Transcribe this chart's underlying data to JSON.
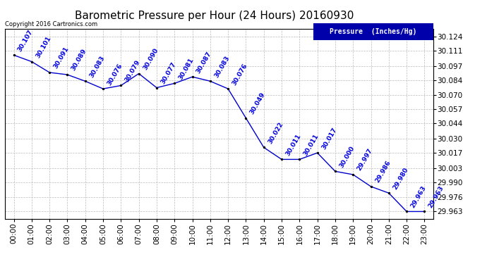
{
  "title": "Barometric Pressure per Hour (24 Hours) 20160930",
  "copyright": "Copyright 2016 Cartronics.com",
  "legend_label": "Pressure  (Inches/Hg)",
  "hours": [
    0,
    1,
    2,
    3,
    4,
    5,
    6,
    7,
    8,
    9,
    10,
    11,
    12,
    13,
    14,
    15,
    16,
    17,
    18,
    19,
    20,
    21,
    22,
    23
  ],
  "hour_labels": [
    "00:00",
    "01:00",
    "02:00",
    "03:00",
    "04:00",
    "05:00",
    "06:00",
    "07:00",
    "08:00",
    "09:00",
    "10:00",
    "11:00",
    "12:00",
    "13:00",
    "14:00",
    "15:00",
    "16:00",
    "17:00",
    "18:00",
    "19:00",
    "20:00",
    "21:00",
    "22:00",
    "23:00"
  ],
  "pressure": [
    30.107,
    30.101,
    30.091,
    30.089,
    30.083,
    30.076,
    30.079,
    30.09,
    30.077,
    30.081,
    30.087,
    30.083,
    30.076,
    30.049,
    30.022,
    30.011,
    30.011,
    30.017,
    30.0,
    29.997,
    29.986,
    29.98,
    29.963,
    29.963
  ],
  "yticks": [
    29.963,
    29.976,
    29.99,
    30.003,
    30.017,
    30.03,
    30.044,
    30.057,
    30.07,
    30.084,
    30.097,
    30.111,
    30.124
  ],
  "ylim": [
    29.956,
    30.131
  ],
  "line_color": "#0000cc",
  "marker_color": "#000000",
  "label_color": "#0000dd",
  "bg_color": "#ffffff",
  "grid_color": "#bbbbbb",
  "title_fontsize": 11,
  "label_fontsize": 6.5,
  "tick_fontsize": 7.5,
  "copyright_fontsize": 6,
  "legend_bg": "#0000aa",
  "legend_fg": "#ffffff",
  "legend_fontsize": 7
}
